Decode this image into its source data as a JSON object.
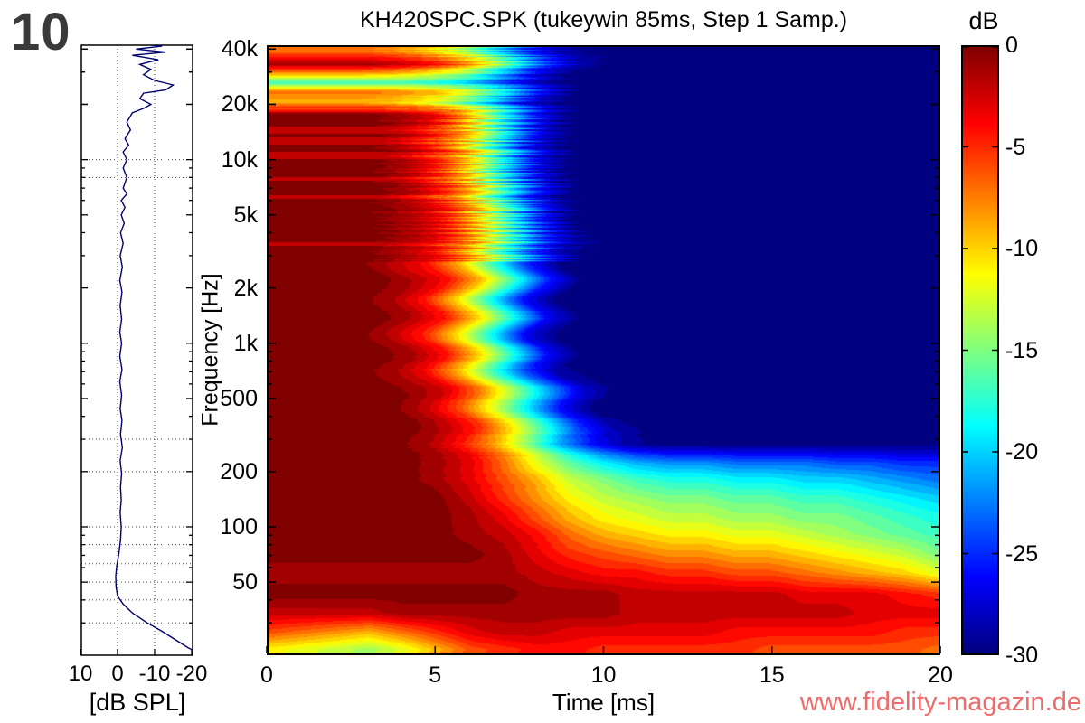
{
  "figure_number": "10",
  "title": "KH420SPC.SPK (tukeywin 85ms, Step 1 Samp.)",
  "watermark": "www.fidelity-magazin.de",
  "colors": {
    "watermark": "#ee6b6b",
    "curve": "#00006e",
    "figure_number": "#3a3a3a",
    "frame": "#000000",
    "grid_dots": "#444444"
  },
  "main_plot": {
    "xlabel": "Time [ms]",
    "ylabel": "Frequency [Hz]",
    "x_ticks": [
      {
        "v": 0,
        "label": "0"
      },
      {
        "v": 5,
        "label": "5"
      },
      {
        "v": 10,
        "label": "10"
      },
      {
        "v": 15,
        "label": "15"
      },
      {
        "v": 20,
        "label": "20"
      }
    ],
    "y_ticks": [
      {
        "f": 40000,
        "label": "40k"
      },
      {
        "f": 20000,
        "label": "20k"
      },
      {
        "f": 10000,
        "label": "10k"
      },
      {
        "f": 5000,
        "label": "5k"
      },
      {
        "f": 2000,
        "label": "2k"
      },
      {
        "f": 1000,
        "label": "1k"
      },
      {
        "f": 500,
        "label": "500"
      },
      {
        "f": 200,
        "label": "200"
      },
      {
        "f": 100,
        "label": "100"
      },
      {
        "f": 50,
        "label": "50"
      }
    ]
  },
  "colorbar": {
    "label": "dB",
    "ticks": [
      {
        "v": 0,
        "label": "0"
      },
      {
        "v": -5,
        "label": "-5"
      },
      {
        "v": -10,
        "label": "-10"
      },
      {
        "v": -15,
        "label": "-15"
      },
      {
        "v": -20,
        "label": "-20"
      },
      {
        "v": -25,
        "label": "-25"
      },
      {
        "v": -30,
        "label": "-30"
      }
    ]
  },
  "left_panel": {
    "xlabel": "[dB SPL]",
    "x_ticks": [
      {
        "v": 10,
        "label": "10"
      },
      {
        "v": 0,
        "label": "0"
      },
      {
        "v": -10,
        "label": "-10"
      },
      {
        "v": -20,
        "label": "-20"
      }
    ],
    "grid_db": [
      0,
      -10
    ],
    "grid_freqs": [
      10000,
      8000,
      300,
      200,
      100,
      80,
      63,
      50,
      40,
      30
    ]
  },
  "chart_data": [
    {
      "type": "heatmap",
      "title": "KH420SPC.SPK (tukeywin 85ms, Step 1 Samp.)",
      "xlabel": "Time [ms]",
      "ylabel": "Frequency [Hz]",
      "colorbar_label": "dB",
      "colormap": "jet",
      "clim_db": [
        -30,
        0
      ],
      "x_range_ms": [
        0,
        20
      ],
      "y_range_hz": [
        20,
        42000
      ],
      "y_scale": "log",
      "times_ms": [
        0,
        1,
        2,
        3,
        4,
        5,
        6,
        7,
        8,
        9,
        10,
        11,
        12,
        13,
        14,
        15,
        16,
        17,
        18,
        19,
        20
      ],
      "freqs_hz": [
        40000,
        34000,
        30000,
        27000,
        24000,
        21000,
        18000,
        14000,
        10000,
        7000,
        5000,
        3500,
        2500,
        1800,
        1200,
        800,
        600,
        450,
        350,
        280,
        220,
        180,
        140,
        110,
        90,
        70,
        55,
        42,
        33,
        26,
        21
      ],
      "values_db": [
        [
          -7,
          -7,
          -7,
          -7,
          -8,
          -10,
          -14,
          -20,
          -26,
          -29,
          -30,
          -30,
          -30,
          -30,
          -30,
          -30,
          -30,
          -30,
          -30,
          -30,
          -30
        ],
        [
          -1,
          -1,
          -1,
          -1,
          -2,
          -4,
          -8,
          -15,
          -23,
          -28,
          -30,
          -30,
          -30,
          -30,
          -30,
          -30,
          -30,
          -30,
          -30,
          -30,
          -30
        ],
        [
          -9,
          -9,
          -9,
          -9,
          -10,
          -12,
          -15,
          -21,
          -27,
          -30,
          -30,
          -30,
          -30,
          -30,
          -30,
          -30,
          -30,
          -30,
          -30,
          -30,
          -30
        ],
        [
          -17,
          -17,
          -17,
          -17,
          -17,
          -18,
          -20,
          -24,
          -28,
          -30,
          -30,
          -30,
          -30,
          -30,
          -30,
          -30,
          -30,
          -30,
          -30,
          -30,
          -30
        ],
        [
          -7,
          -7,
          -7,
          -7,
          -8,
          -9,
          -13,
          -19,
          -26,
          -30,
          -30,
          -30,
          -30,
          -30,
          -30,
          -30,
          -30,
          -30,
          -30,
          -30,
          -30
        ],
        [
          -9,
          -9,
          -9,
          -9,
          -10,
          -12,
          -16,
          -22,
          -28,
          -30,
          -30,
          -30,
          -30,
          -30,
          -30,
          -30,
          -30,
          -30,
          -30,
          -30,
          -30
        ],
        [
          0,
          0,
          0,
          0,
          -1,
          -3,
          -9,
          -18,
          -26,
          -30,
          -30,
          -30,
          -30,
          -30,
          -30,
          -30,
          -30,
          -30,
          -30,
          -30,
          -30
        ],
        [
          0,
          0,
          0,
          0,
          -1,
          -4,
          -10,
          -19,
          -27,
          -30,
          -30,
          -30,
          -30,
          -30,
          -30,
          -30,
          -30,
          -30,
          -30,
          -30,
          -30
        ],
        [
          0,
          0,
          0,
          0,
          -1,
          -4,
          -10,
          -19,
          -27,
          -30,
          -30,
          -30,
          -30,
          -30,
          -30,
          -30,
          -30,
          -30,
          -30,
          -30,
          -30
        ],
        [
          0,
          0,
          0,
          0,
          -1,
          -4,
          -9,
          -18,
          -26,
          -30,
          -30,
          -30,
          -30,
          -30,
          -30,
          -30,
          -30,
          -30,
          -30,
          -30,
          -30
        ],
        [
          0,
          0,
          0,
          0,
          -1,
          -3,
          -8,
          -16,
          -25,
          -30,
          -30,
          -30,
          -30,
          -30,
          -30,
          -30,
          -30,
          -30,
          -30,
          -30,
          -30
        ],
        [
          0,
          0,
          0,
          0,
          -1,
          -3,
          -8,
          -16,
          -24,
          -29,
          -30,
          -30,
          -30,
          -30,
          -30,
          -30,
          -30,
          -30,
          -30,
          -30,
          -30
        ],
        [
          0,
          0,
          0,
          0,
          -2,
          -4,
          -9,
          -17,
          -25,
          -30,
          -30,
          -30,
          -30,
          -30,
          -30,
          -30,
          -30,
          -30,
          -30,
          -30,
          -30
        ],
        [
          0,
          0,
          0,
          0,
          -1,
          -4,
          -10,
          -18,
          -26,
          -30,
          -30,
          -30,
          -30,
          -30,
          -30,
          -30,
          -30,
          -30,
          -30,
          -30,
          -30
        ],
        [
          0,
          0,
          0,
          0,
          -2,
          -5,
          -11,
          -19,
          -27,
          -30,
          -30,
          -30,
          -30,
          -30,
          -30,
          -30,
          -30,
          -30,
          -30,
          -30,
          -30
        ],
        [
          0,
          0,
          0,
          0,
          -1,
          -4,
          -10,
          -18,
          -26,
          -30,
          -30,
          -30,
          -30,
          -30,
          -30,
          -30,
          -30,
          -30,
          -30,
          -30,
          -30
        ],
        [
          0,
          0,
          0,
          0,
          -1,
          -3,
          -8,
          -15,
          -22,
          -28,
          -30,
          -30,
          -30,
          -30,
          -30,
          -30,
          -30,
          -30,
          -30,
          -30,
          -30
        ],
        [
          0,
          0,
          0,
          0,
          0,
          -2,
          -6,
          -12,
          -19,
          -26,
          -30,
          -30,
          -30,
          -30,
          -30,
          -30,
          -30,
          -30,
          -30,
          -30,
          -30
        ],
        [
          0,
          0,
          0,
          0,
          0,
          -2,
          -5,
          -11,
          -18,
          -25,
          -29,
          -30,
          -30,
          -30,
          -30,
          -30,
          -30,
          -30,
          -30,
          -30,
          -30
        ],
        [
          0,
          0,
          0,
          0,
          0,
          -1,
          -4,
          -8,
          -14,
          -21,
          -26,
          -29,
          -30,
          -30,
          -30,
          -30,
          -30,
          -30,
          -30,
          -30,
          -30
        ],
        [
          0,
          0,
          0,
          0,
          0,
          -1,
          -3,
          -7,
          -12,
          -16,
          -19,
          -21,
          -22,
          -22,
          -23,
          -23,
          -23,
          -24,
          -24,
          -25,
          -25
        ],
        [
          0,
          0,
          0,
          0,
          0,
          -1,
          -3,
          -6,
          -9,
          -13,
          -15,
          -17,
          -18,
          -18,
          -19,
          -19,
          -20,
          -20,
          -21,
          -22,
          -23
        ],
        [
          0,
          0,
          0,
          0,
          0,
          0,
          -2,
          -5,
          -8,
          -11,
          -13,
          -14,
          -15,
          -15,
          -16,
          -16,
          -17,
          -17,
          -18,
          -19,
          -20
        ],
        [
          0,
          0,
          0,
          0,
          0,
          0,
          -1,
          -3,
          -6,
          -9,
          -11,
          -12,
          -13,
          -13,
          -14,
          -14,
          -15,
          -15,
          -16,
          -17,
          -18
        ],
        [
          0,
          0,
          0,
          0,
          0,
          0,
          -1,
          -2,
          -4,
          -7,
          -9,
          -10,
          -11,
          -11,
          -12,
          -12,
          -13,
          -14,
          -15,
          -16,
          -17
        ],
        [
          0,
          0,
          0,
          0,
          0,
          0,
          0,
          -1,
          -3,
          -5,
          -6,
          -7,
          -8,
          -8,
          -9,
          -9,
          -10,
          -11,
          -12,
          -13,
          -15
        ],
        [
          -1,
          -1,
          -1,
          -1,
          -1,
          -1,
          -1,
          -1,
          -2,
          -3,
          -4,
          -4,
          -5,
          -5,
          -6,
          -6,
          -7,
          -8,
          -9,
          -10,
          -12
        ],
        [
          0,
          0,
          0,
          0,
          0,
          0,
          0,
          0,
          -1,
          -1,
          -1,
          -2,
          -2,
          -2,
          -2,
          -2,
          -3,
          -3,
          -3,
          -4,
          -5
        ],
        [
          -2,
          -2,
          -2,
          -2,
          -1,
          -1,
          -1,
          -1,
          -1,
          -1,
          -1,
          -2,
          -2,
          -2,
          -2,
          -2,
          -2,
          -2,
          -3,
          -3,
          -3
        ],
        [
          -6,
          -7,
          -8,
          -9,
          -7,
          -5,
          -3,
          -2,
          -2,
          -3,
          -3,
          -3,
          -3,
          -3,
          -4,
          -4,
          -4,
          -4,
          -4,
          -5,
          -5
        ],
        [
          -11,
          -12,
          -13,
          -14,
          -12,
          -9,
          -6,
          -5,
          -4,
          -4,
          -5,
          -5,
          -5,
          -5,
          -5,
          -6,
          -6,
          -6,
          -6,
          -6,
          -7
        ]
      ]
    },
    {
      "type": "line",
      "xlabel": "[dB SPL]",
      "x_range": [
        10,
        -20
      ],
      "y_scale": "log",
      "points_hz_db": [
        [
          43000,
          -4
        ],
        [
          41500,
          -12
        ],
        [
          40000,
          -5
        ],
        [
          38500,
          -13
        ],
        [
          37000,
          -4
        ],
        [
          35000,
          -11
        ],
        [
          33000,
          -6
        ],
        [
          31000,
          -9
        ],
        [
          29000,
          -7
        ],
        [
          27000,
          -10
        ],
        [
          25500,
          -15
        ],
        [
          24000,
          -13
        ],
        [
          23000,
          -7
        ],
        [
          21500,
          -6
        ],
        [
          20000,
          -9
        ],
        [
          19000,
          -7
        ],
        [
          18000,
          -4
        ],
        [
          16000,
          -2.5
        ],
        [
          14500,
          -3.5
        ],
        [
          13000,
          -2
        ],
        [
          12000,
          -3
        ],
        [
          11000,
          -1.5
        ],
        [
          10000,
          -2.5
        ],
        [
          9000,
          -1.5
        ],
        [
          8000,
          -2.5
        ],
        [
          7000,
          -1.5
        ],
        [
          6500,
          -2.5
        ],
        [
          6000,
          -1
        ],
        [
          5500,
          -2
        ],
        [
          5000,
          -1
        ],
        [
          4500,
          -1.8
        ],
        [
          4000,
          -0.8
        ],
        [
          3500,
          -1.5
        ],
        [
          3000,
          -0.7
        ],
        [
          2600,
          -1.3
        ],
        [
          2200,
          -0.6
        ],
        [
          1900,
          -1.2
        ],
        [
          1600,
          -0.7
        ],
        [
          1350,
          -1.1
        ],
        [
          1150,
          -0.6
        ],
        [
          1000,
          -1.1
        ],
        [
          850,
          -0.6
        ],
        [
          720,
          -1.2
        ],
        [
          620,
          -0.6
        ],
        [
          520,
          -1.1
        ],
        [
          440,
          -0.7
        ],
        [
          380,
          -1.2
        ],
        [
          320,
          -0.8
        ],
        [
          270,
          -1.3
        ],
        [
          230,
          -0.7
        ],
        [
          195,
          -1.1
        ],
        [
          165,
          -0.8
        ],
        [
          140,
          -1.0
        ],
        [
          120,
          -0.7
        ],
        [
          100,
          -1.0
        ],
        [
          85,
          -0.8
        ],
        [
          72,
          -0.4
        ],
        [
          62,
          0.2
        ],
        [
          54,
          0.5
        ],
        [
          47,
          0.4
        ],
        [
          42,
          0
        ],
        [
          38,
          -1.5
        ],
        [
          34,
          -4
        ],
        [
          30,
          -8
        ],
        [
          27,
          -12
        ],
        [
          24,
          -16
        ],
        [
          22,
          -19
        ],
        [
          21,
          -21
        ]
      ]
    }
  ]
}
